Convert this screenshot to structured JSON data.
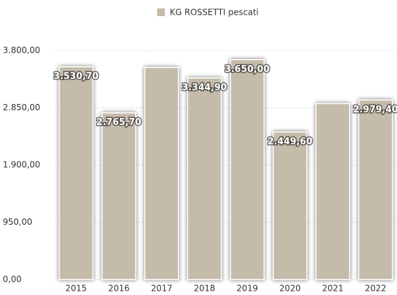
{
  "chart_data": {
    "type": "bar",
    "categories": [
      "2015",
      "2016",
      "2017",
      "2018",
      "2019",
      "2020",
      "2021",
      "2022"
    ],
    "series": [
      {
        "name": "KG ROSSETTI pescati",
        "color": "#c5bbab",
        "values": [
          3530.7,
          2765.7,
          3520,
          3344.9,
          3650,
          2449.6,
          2920,
          2979.4
        ],
        "value_labels": [
          "3.530,70",
          "2.765,70",
          null,
          "3.344,90",
          "3.650,00",
          "2.449,60",
          null,
          "2.979,40"
        ]
      }
    ],
    "ylim": [
      0,
      3800
    ],
    "yticks": [
      {
        "value": 0,
        "label": "0,00"
      },
      {
        "value": 950,
        "label": "950,00"
      },
      {
        "value": 1900,
        "label": "1.900,00"
      },
      {
        "value": 2850,
        "label": "2.850,00"
      },
      {
        "value": 3800,
        "label": "3.800,00"
      }
    ],
    "grid": true,
    "legend": "top"
  }
}
